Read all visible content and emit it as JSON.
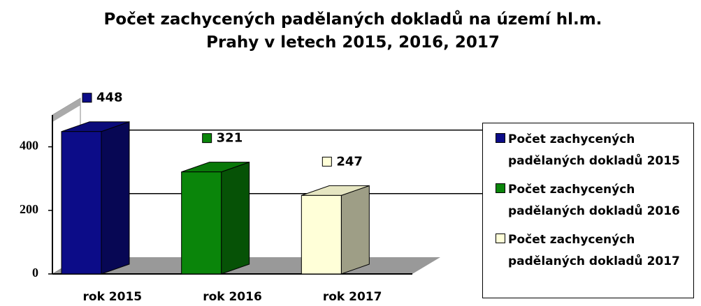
{
  "chart_data": {
    "type": "bar",
    "title": "Počet zachycených padělaných dokladů na území hl.m. Prahy v letech 2015, 2016, 2017",
    "categories": [
      "rok 2015",
      "rok 2016",
      "rok 2017"
    ],
    "series": [
      {
        "name": "Počet zachycených padělaných dokladů 2015",
        "color": "#0c0c88",
        "values": [
          448,
          null,
          null
        ]
      },
      {
        "name": "Počet zachycených padělaných dokladů 2016",
        "color": "#0a850a",
        "values": [
          null,
          321,
          null
        ]
      },
      {
        "name": "Počet zachycených padělaných dokladů 2017",
        "color": "#ffffd8",
        "values": [
          null,
          null,
          247
        ]
      }
    ],
    "ylim": [
      0,
      500
    ],
    "yticks": [
      0,
      200,
      400
    ],
    "grid": true,
    "legend": "right"
  }
}
